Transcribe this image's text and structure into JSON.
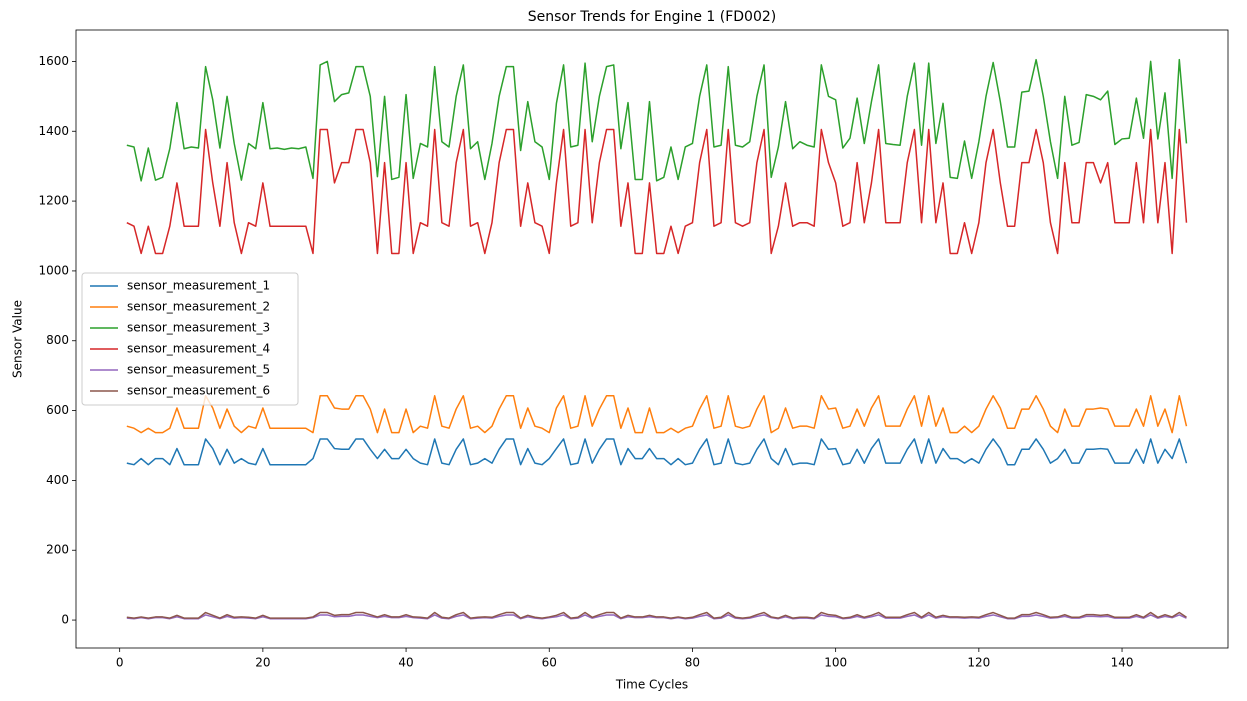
{
  "chart_data": {
    "type": "line",
    "title": "Sensor Trends for Engine 1 (FD002)",
    "x_label": "Time Cycles",
    "y_label": "Sensor Value",
    "legend": "center left",
    "grid": false,
    "xlim": [
      -6.1,
      154.8
    ],
    "ylim": [
      -80,
      1690
    ],
    "xticks": [
      0,
      20,
      40,
      60,
      80,
      100,
      120,
      140
    ],
    "yticks": [
      0,
      200,
      400,
      600,
      800,
      1000,
      1200,
      1400,
      1600
    ],
    "x": [
      1,
      2,
      3,
      4,
      5,
      6,
      7,
      8,
      9,
      10,
      11,
      12,
      13,
      14,
      15,
      16,
      17,
      18,
      19,
      20,
      21,
      22,
      23,
      24,
      25,
      26,
      27,
      28,
      29,
      30,
      31,
      32,
      33,
      34,
      35,
      36,
      37,
      38,
      39,
      40,
      41,
      42,
      43,
      44,
      45,
      46,
      47,
      48,
      49,
      50,
      51,
      52,
      53,
      54,
      55,
      56,
      57,
      58,
      59,
      60,
      61,
      62,
      63,
      64,
      65,
      66,
      67,
      68,
      69,
      70,
      71,
      72,
      73,
      74,
      75,
      76,
      77,
      78,
      79,
      80,
      81,
      82,
      83,
      84,
      85,
      86,
      87,
      88,
      89,
      90,
      91,
      92,
      93,
      94,
      95,
      96,
      97,
      98,
      99,
      100,
      101,
      102,
      103,
      104,
      105,
      106,
      107,
      108,
      109,
      110,
      111,
      112,
      113,
      114,
      115,
      116,
      117,
      118,
      119,
      120,
      121,
      122,
      123,
      124,
      125,
      126,
      127,
      128,
      129,
      130,
      131,
      132,
      133,
      134,
      135,
      136,
      137,
      138,
      139,
      140,
      141,
      142,
      143,
      144,
      145,
      146,
      147,
      148,
      149
    ],
    "series": [
      {
        "name": "sensor_measurement_1",
        "color": "#1f77b4",
        "values": [
          449.4,
          445,
          462.5,
          445,
          462.5,
          462.5,
          445,
          491.2,
          445,
          445,
          445,
          518.7,
          491.2,
          445,
          489.1,
          449.4,
          462.5,
          449.4,
          445,
          491.2,
          445,
          445,
          445,
          445,
          445,
          445,
          462.5,
          518.7,
          518.7,
          491.2,
          489.1,
          489.1,
          518.7,
          518.7,
          489.1,
          462.5,
          489.1,
          462.5,
          462.5,
          489.1,
          462.5,
          449.4,
          445,
          518.7,
          449.4,
          445,
          489.1,
          518.7,
          445,
          449.4,
          462.5,
          449.4,
          489.1,
          518.7,
          518.7,
          445,
          491.2,
          449.4,
          445,
          462.5,
          491.2,
          518.7,
          445,
          449.4,
          518.7,
          449.4,
          489.1,
          518.7,
          518.7,
          445,
          491.2,
          462.5,
          462.5,
          491.2,
          462.5,
          462.5,
          445,
          462.5,
          445,
          449.4,
          489.1,
          518.7,
          445,
          449.4,
          518.7,
          449.4,
          445,
          449.4,
          489.1,
          518.7,
          462.5,
          445,
          491.2,
          445,
          449.4,
          449.4,
          445,
          518.7,
          489.1,
          491.2,
          445,
          449.4,
          489.1,
          449.4,
          491.2,
          518.7,
          449.4,
          449.4,
          449.4,
          489.1,
          518.7,
          449.4,
          518.7,
          449.4,
          491.2,
          462.5,
          462.5,
          449.4,
          462.5,
          449.4,
          489.1,
          518.7,
          491.2,
          445,
          445,
          489.1,
          489.1,
          518.7,
          489.1,
          449.4,
          462.5,
          489.1,
          449.4,
          449.4,
          489.1,
          489.1,
          491.2,
          489.1,
          449.4,
          449.4,
          449.4,
          489.1,
          449.4,
          518.7,
          449.4,
          489.1,
          462.5,
          518.7,
          449.4
        ]
      },
      {
        "name": "sensor_measurement_2",
        "color": "#ff7f0e",
        "values": [
          555.3,
          549.5,
          536.9,
          549.5,
          536.9,
          536.9,
          549.5,
          607.5,
          549.5,
          549.5,
          549.5,
          642.5,
          607.5,
          549.5,
          604.3,
          555.3,
          536.9,
          555.3,
          549.5,
          607.5,
          549.5,
          549.5,
          549.5,
          549.5,
          549.5,
          549.5,
          536.9,
          642.5,
          642.5,
          607.5,
          604.3,
          604.3,
          642.5,
          642.5,
          604.3,
          536.9,
          604.3,
          536.9,
          536.9,
          604.3,
          536.9,
          555.3,
          549.5,
          642.5,
          555.3,
          549.5,
          604.3,
          642.5,
          549.5,
          555.3,
          536.9,
          555.3,
          604.3,
          642.5,
          642.5,
          549.5,
          607.5,
          555.3,
          549.5,
          536.9,
          607.5,
          642.5,
          549.5,
          555.3,
          642.5,
          555.3,
          604.3,
          642.5,
          642.5,
          549.5,
          607.5,
          536.9,
          536.9,
          607.5,
          536.9,
          536.9,
          549.5,
          536.9,
          549.5,
          555.3,
          604.3,
          642.5,
          549.5,
          555.3,
          642.5,
          555.3,
          549.5,
          555.3,
          604.3,
          642.5,
          536.9,
          549.5,
          607.5,
          549.5,
          555.3,
          555.3,
          549.5,
          642.5,
          604.3,
          607.5,
          549.5,
          555.3,
          604.3,
          555.3,
          607.5,
          642.5,
          555.3,
          555.3,
          555.3,
          604.3,
          642.5,
          555.3,
          642.5,
          555.3,
          607.5,
          536.9,
          536.9,
          555.3,
          536.9,
          555.3,
          604.3,
          642.5,
          607.5,
          549.5,
          549.5,
          604.3,
          604.3,
          642.5,
          604.3,
          555.3,
          536.9,
          604.3,
          555.3,
          555.3,
          604.3,
          604.3,
          607.5,
          604.3,
          555.3,
          555.3,
          555.3,
          604.3,
          555.3,
          642.5,
          555.3,
          604.3,
          536.9,
          642.5,
          555.3
        ]
      },
      {
        "name": "sensor_measurement_3",
        "color": "#2ca02c",
        "values": [
          1360,
          1355,
          1258,
          1352,
          1260,
          1268,
          1350,
          1482,
          1350,
          1355,
          1352,
          1585,
          1490,
          1352,
          1500,
          1365,
          1260,
          1365,
          1350,
          1482,
          1350,
          1352,
          1348,
          1352,
          1350,
          1355,
          1265,
          1590,
          1600,
          1485,
          1505,
          1510,
          1585,
          1585,
          1500,
          1270,
          1500,
          1262,
          1268,
          1505,
          1265,
          1365,
          1355,
          1585,
          1370,
          1355,
          1500,
          1590,
          1350,
          1370,
          1262,
          1365,
          1500,
          1585,
          1585,
          1345,
          1485,
          1370,
          1355,
          1262,
          1480,
          1590,
          1355,
          1360,
          1595,
          1370,
          1500,
          1585,
          1590,
          1350,
          1482,
          1262,
          1262,
          1485,
          1258,
          1268,
          1355,
          1262,
          1355,
          1365,
          1500,
          1590,
          1355,
          1360,
          1585,
          1360,
          1355,
          1370,
          1500,
          1590,
          1268,
          1355,
          1485,
          1350,
          1370,
          1360,
          1355,
          1590,
          1500,
          1490,
          1352,
          1380,
          1495,
          1365,
          1485,
          1590,
          1365,
          1362,
          1360,
          1500,
          1595,
          1360,
          1595,
          1365,
          1480,
          1268,
          1265,
          1372,
          1265,
          1370,
          1500,
          1597,
          1485,
          1355,
          1355,
          1512,
          1515,
          1605,
          1500,
          1370,
          1265,
          1500,
          1360,
          1368,
          1505,
          1500,
          1490,
          1515,
          1362,
          1378,
          1380,
          1495,
          1380,
          1600,
          1378,
          1510,
          1265,
          1605,
          1365
        ]
      },
      {
        "name": "sensor_measurement_4",
        "color": "#d62728",
        "values": [
          1138,
          1128,
          1050,
          1128,
          1050,
          1050,
          1128,
          1252,
          1128,
          1128,
          1128,
          1405,
          1252,
          1128,
          1310,
          1138,
          1050,
          1138,
          1128,
          1252,
          1128,
          1128,
          1128,
          1128,
          1128,
          1128,
          1050,
          1405,
          1405,
          1252,
          1310,
          1310,
          1405,
          1405,
          1310,
          1050,
          1310,
          1050,
          1050,
          1310,
          1050,
          1138,
          1128,
          1405,
          1138,
          1128,
          1310,
          1405,
          1128,
          1138,
          1050,
          1138,
          1310,
          1405,
          1405,
          1128,
          1252,
          1138,
          1128,
          1050,
          1252,
          1405,
          1128,
          1138,
          1405,
          1138,
          1310,
          1405,
          1405,
          1128,
          1252,
          1050,
          1050,
          1252,
          1050,
          1050,
          1128,
          1050,
          1128,
          1138,
          1310,
          1405,
          1128,
          1138,
          1405,
          1138,
          1128,
          1138,
          1310,
          1405,
          1050,
          1128,
          1252,
          1128,
          1138,
          1138,
          1128,
          1405,
          1310,
          1252,
          1128,
          1138,
          1310,
          1138,
          1252,
          1405,
          1138,
          1138,
          1138,
          1310,
          1405,
          1138,
          1405,
          1138,
          1252,
          1050,
          1050,
          1138,
          1050,
          1138,
          1310,
          1405,
          1252,
          1128,
          1128,
          1310,
          1310,
          1405,
          1310,
          1138,
          1050,
          1310,
          1138,
          1138,
          1310,
          1310,
          1252,
          1310,
          1138,
          1138,
          1138,
          1310,
          1138,
          1405,
          1138,
          1310,
          1050,
          1405,
          1138
        ]
      },
      {
        "name": "sensor_measurement_5",
        "color": "#9467bd",
        "values": [
          5.48,
          3.91,
          7.05,
          3.91,
          7.05,
          7.05,
          3.91,
          9.35,
          3.91,
          3.91,
          3.91,
          14.62,
          9.35,
          3.91,
          10.52,
          5.48,
          7.05,
          5.48,
          3.91,
          9.35,
          3.91,
          3.91,
          3.91,
          3.91,
          3.91,
          3.91,
          7.05,
          14.62,
          14.62,
          9.35,
          10.52,
          10.52,
          14.62,
          14.62,
          10.52,
          7.05,
          10.52,
          7.05,
          7.05,
          10.52,
          7.05,
          5.48,
          3.91,
          14.62,
          5.48,
          3.91,
          10.52,
          14.62,
          3.91,
          5.48,
          7.05,
          5.48,
          10.52,
          14.62,
          14.62,
          3.91,
          9.35,
          5.48,
          3.91,
          7.05,
          9.35,
          14.62,
          3.91,
          5.48,
          14.62,
          5.48,
          10.52,
          14.62,
          14.62,
          3.91,
          9.35,
          7.05,
          7.05,
          9.35,
          7.05,
          7.05,
          3.91,
          7.05,
          3.91,
          5.48,
          10.52,
          14.62,
          3.91,
          5.48,
          14.62,
          5.48,
          3.91,
          5.48,
          10.52,
          14.62,
          7.05,
          3.91,
          9.35,
          3.91,
          5.48,
          5.48,
          3.91,
          14.62,
          10.52,
          9.35,
          3.91,
          5.48,
          10.52,
          5.48,
          9.35,
          14.62,
          5.48,
          5.48,
          5.48,
          10.52,
          14.62,
          5.48,
          14.62,
          5.48,
          9.35,
          7.05,
          7.05,
          5.48,
          7.05,
          5.48,
          10.52,
          14.62,
          9.35,
          3.91,
          3.91,
          10.52,
          10.52,
          14.62,
          10.52,
          5.48,
          7.05,
          10.52,
          5.48,
          5.48,
          10.52,
          10.52,
          9.35,
          10.52,
          5.48,
          5.48,
          5.48,
          10.52,
          5.48,
          14.62,
          5.48,
          10.52,
          7.05,
          14.62,
          5.48
        ]
      },
      {
        "name": "sensor_measurement_6",
        "color": "#8c564b",
        "values": [
          8,
          5.7,
          9,
          5.7,
          9,
          9,
          5.7,
          13.6,
          5.7,
          5.7,
          5.7,
          21.6,
          13.6,
          5.7,
          15.5,
          8,
          9,
          8,
          5.7,
          13.6,
          5.7,
          5.7,
          5.7,
          5.7,
          5.7,
          5.7,
          9,
          21.6,
          21.6,
          13.6,
          15.5,
          15.5,
          21.6,
          21.6,
          15.5,
          9,
          15.5,
          9,
          9,
          15.5,
          9,
          8,
          5.7,
          21.6,
          8,
          5.7,
          15.5,
          21.6,
          5.7,
          8,
          9,
          8,
          15.5,
          21.6,
          21.6,
          5.7,
          13.6,
          8,
          5.7,
          9,
          13.6,
          21.6,
          5.7,
          8,
          21.6,
          8,
          15.5,
          21.6,
          21.6,
          5.7,
          13.6,
          9,
          9,
          13.6,
          9,
          9,
          5.7,
          9,
          5.7,
          8,
          15.5,
          21.6,
          5.7,
          8,
          21.6,
          8,
          5.7,
          8,
          15.5,
          21.6,
          9,
          5.7,
          13.6,
          5.7,
          8,
          8,
          5.7,
          21.6,
          15.5,
          13.6,
          5.7,
          8,
          15.5,
          8,
          13.6,
          21.6,
          8,
          8,
          8,
          15.5,
          21.6,
          8,
          21.6,
          8,
          13.6,
          9,
          9,
          8,
          9,
          8,
          15.5,
          21.6,
          13.6,
          5.7,
          5.7,
          15.5,
          15.5,
          21.6,
          15.5,
          8,
          9,
          15.5,
          8,
          8,
          15.5,
          15.5,
          13.6,
          15.5,
          8,
          8,
          8,
          15.5,
          8,
          21.6,
          8,
          15.5,
          9,
          21.6,
          8
        ]
      }
    ]
  }
}
